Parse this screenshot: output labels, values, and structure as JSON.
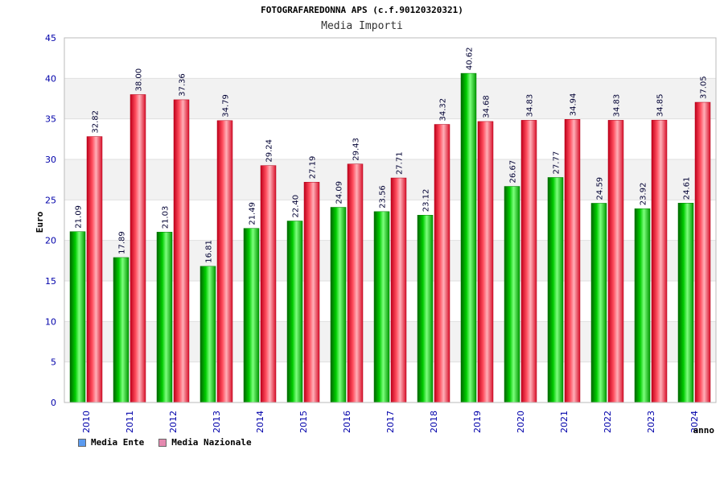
{
  "header": {
    "title": "FOTOGRAFAREDONNA APS (c.f.90120320321)",
    "subtitle": "Media Importi"
  },
  "legend": [
    {
      "label": "Media Ente",
      "color": "#5b9bf0"
    },
    {
      "label": "Media Nazionale",
      "color": "#e58ab0"
    }
  ],
  "colors": {
    "ente": "#00b000",
    "nazionale": "#e8202e",
    "axis_text": "#0000aa",
    "grid_band": "#f2f2f2"
  },
  "chart_data": {
    "type": "bar",
    "title": "Media Importi",
    "xlabel": "anno",
    "ylabel": "Euro",
    "ylim": [
      0,
      45
    ],
    "yticks": [
      0,
      5,
      10,
      15,
      20,
      25,
      30,
      35,
      40,
      45
    ],
    "grid": true,
    "legend_position": "bottom-left",
    "categories": [
      "2010",
      "2011",
      "2012",
      "2013",
      "2014",
      "2015",
      "2016",
      "2017",
      "2018",
      "2019",
      "2020",
      "2021",
      "2022",
      "2023",
      "2024"
    ],
    "series": [
      {
        "name": "Media Ente",
        "values": [
          21.09,
          17.89,
          21.03,
          16.81,
          21.49,
          22.4,
          24.09,
          23.56,
          23.12,
          40.62,
          26.67,
          27.77,
          24.59,
          23.92,
          24.61
        ]
      },
      {
        "name": "Media Nazionale",
        "values": [
          32.82,
          38.0,
          37.36,
          34.79,
          29.24,
          27.19,
          29.43,
          27.71,
          34.32,
          34.68,
          34.83,
          34.94,
          34.83,
          34.85,
          37.05
        ]
      }
    ]
  }
}
